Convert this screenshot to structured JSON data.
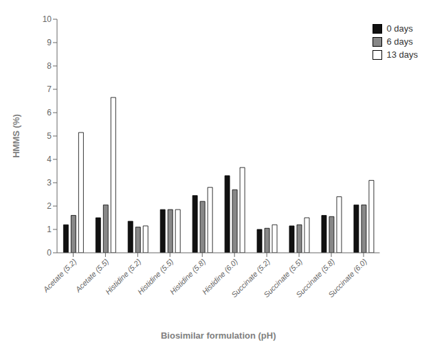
{
  "chart_data": {
    "type": "bar",
    "xlabel": "Biosimilar formulation (pH)",
    "ylabel": "HMMS (%)",
    "categories": [
      "Acetate (5.2)",
      "Acetate (5.5)",
      "Histidine (5.2)",
      "Histidine (5.5)",
      "Histidine (5.8)",
      "Histidine (6.0)",
      "Succinate (5.2)",
      "Succinate (5.5)",
      "Succinate (5.8)",
      "Succinate (6.0)"
    ],
    "series": [
      {
        "name": "0 days",
        "color": "#111111",
        "values": [
          1.2,
          1.5,
          1.35,
          1.85,
          2.45,
          3.3,
          1.0,
          1.15,
          1.6,
          2.05
        ]
      },
      {
        "name": "6 days",
        "color": "#888888",
        "values": [
          1.6,
          2.05,
          1.1,
          1.85,
          2.2,
          2.7,
          1.05,
          1.2,
          1.55,
          2.05
        ]
      },
      {
        "name": "13 days",
        "color": "#ffffff",
        "values": [
          5.15,
          6.65,
          1.15,
          1.85,
          2.8,
          3.65,
          1.2,
          1.5,
          2.4,
          3.1
        ]
      }
    ],
    "ylim": [
      0,
      10
    ],
    "yticks": [
      0,
      1,
      2,
      3,
      4,
      5,
      6,
      7,
      8,
      9,
      10
    ],
    "grid": false,
    "legend": "upper right"
  }
}
